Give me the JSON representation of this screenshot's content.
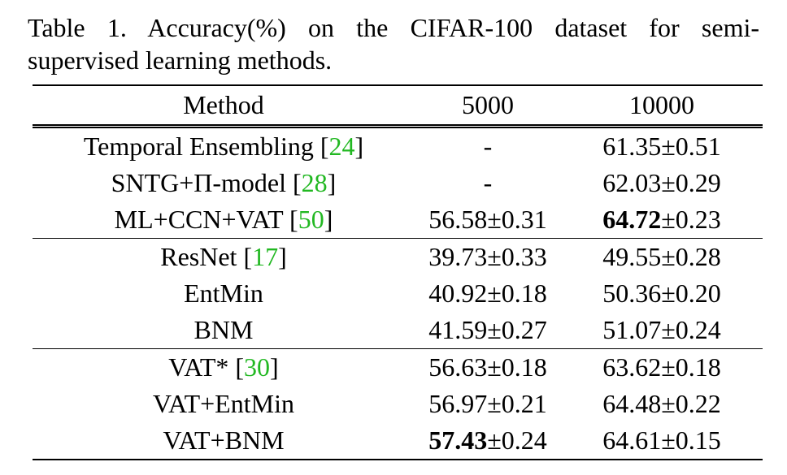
{
  "caption": {
    "line1": "Table 1. Accuracy(%) on the CIFAR-100 dataset for semi-",
    "line2": "supervised learning methods."
  },
  "table": {
    "headers": [
      "Method",
      "5000",
      "10000"
    ],
    "groups": [
      {
        "rows": [
          {
            "method": "Temporal Ensembling ",
            "cite": "24",
            "v5000": "-",
            "v10000": "61.35±0.51"
          },
          {
            "method": "SNTG+Π-model ",
            "cite": "28",
            "v5000": "-",
            "v10000": "62.03±0.29"
          },
          {
            "method": "ML+CCN+VAT ",
            "cite": "50",
            "v5000": "56.58±0.31",
            "v10000_bold": "64.72",
            "v10000_rest": "±0.23"
          }
        ]
      },
      {
        "rows": [
          {
            "method": "ResNet ",
            "cite": "17",
            "v5000": "39.73±0.33",
            "v10000": "49.55±0.28"
          },
          {
            "method": "EntMin",
            "v5000": "40.92±0.18",
            "v10000": "50.36±0.20"
          },
          {
            "method": "BNM",
            "v5000": "41.59±0.27",
            "v10000": "51.07±0.24"
          }
        ]
      },
      {
        "rows": [
          {
            "method": "VAT* ",
            "cite": "30",
            "v5000": "56.63±0.18",
            "v10000": "63.62±0.18"
          },
          {
            "method": "VAT+EntMin",
            "v5000": "56.97±0.21",
            "v10000": "64.48±0.22"
          },
          {
            "method": "VAT+BNM",
            "v5000_bold": "57.43",
            "v5000_rest": "±0.24",
            "v10000": "64.61±0.15"
          }
        ]
      }
    ]
  }
}
